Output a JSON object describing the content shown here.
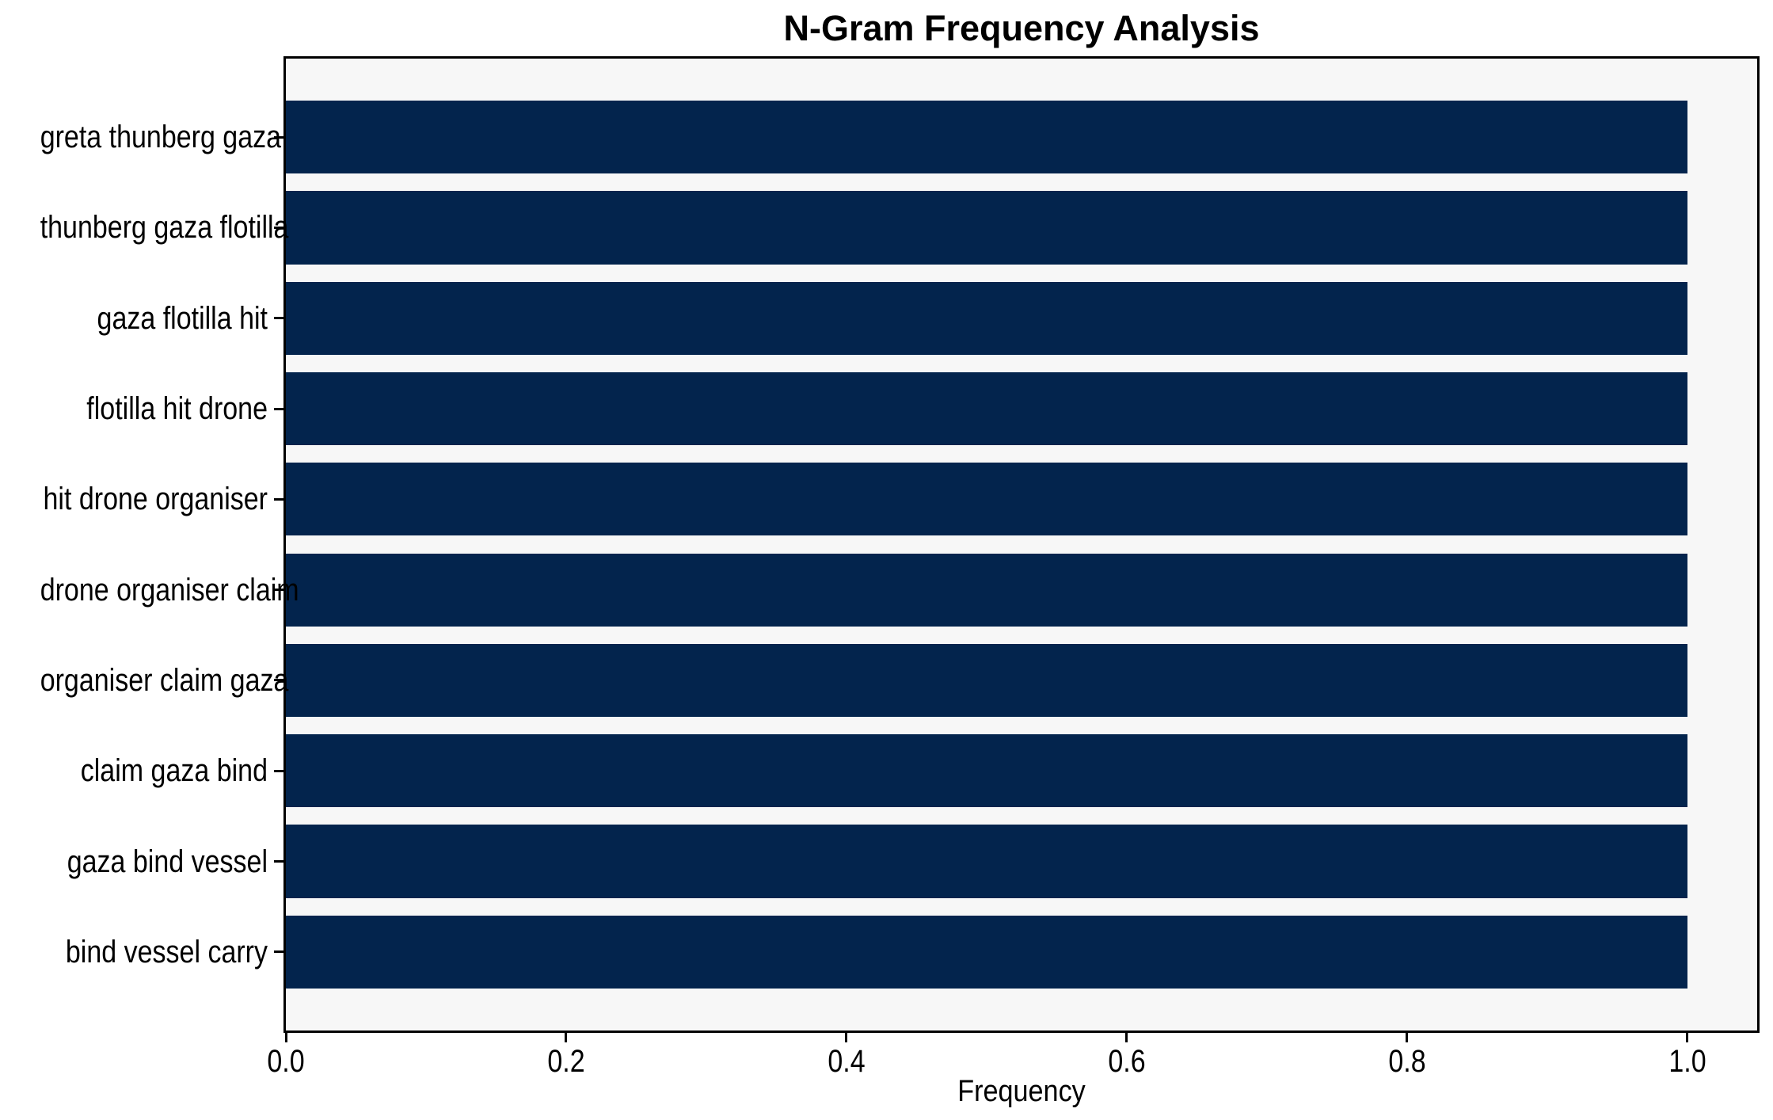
{
  "figure": {
    "background": "#ffffff"
  },
  "chart_data": {
    "type": "bar",
    "orientation": "horizontal",
    "title": "N-Gram Frequency Analysis",
    "xlabel": "Frequency",
    "ylabel": "",
    "categories": [
      "greta thunberg gaza",
      "thunberg gaza flotilla",
      "gaza flotilla hit",
      "flotilla hit drone",
      "hit drone organiser",
      "drone organiser claim",
      "organiser claim gaza",
      "claim gaza bind",
      "gaza bind vessel",
      "bind vessel carry"
    ],
    "values": [
      1.0,
      1.0,
      1.0,
      1.0,
      1.0,
      1.0,
      1.0,
      1.0,
      1.0,
      1.0
    ],
    "xlim": [
      0,
      1.05
    ],
    "xticks": [
      0.0,
      0.2,
      0.4,
      0.6,
      0.8,
      1.0
    ],
    "xtick_labels": [
      "0.0",
      "0.2",
      "0.4",
      "0.6",
      "0.8",
      "1.0"
    ],
    "grid": false,
    "legend": null,
    "bar_color": "#03244d",
    "plot_background": "#f7f7f7",
    "axis_color": "#000000"
  }
}
